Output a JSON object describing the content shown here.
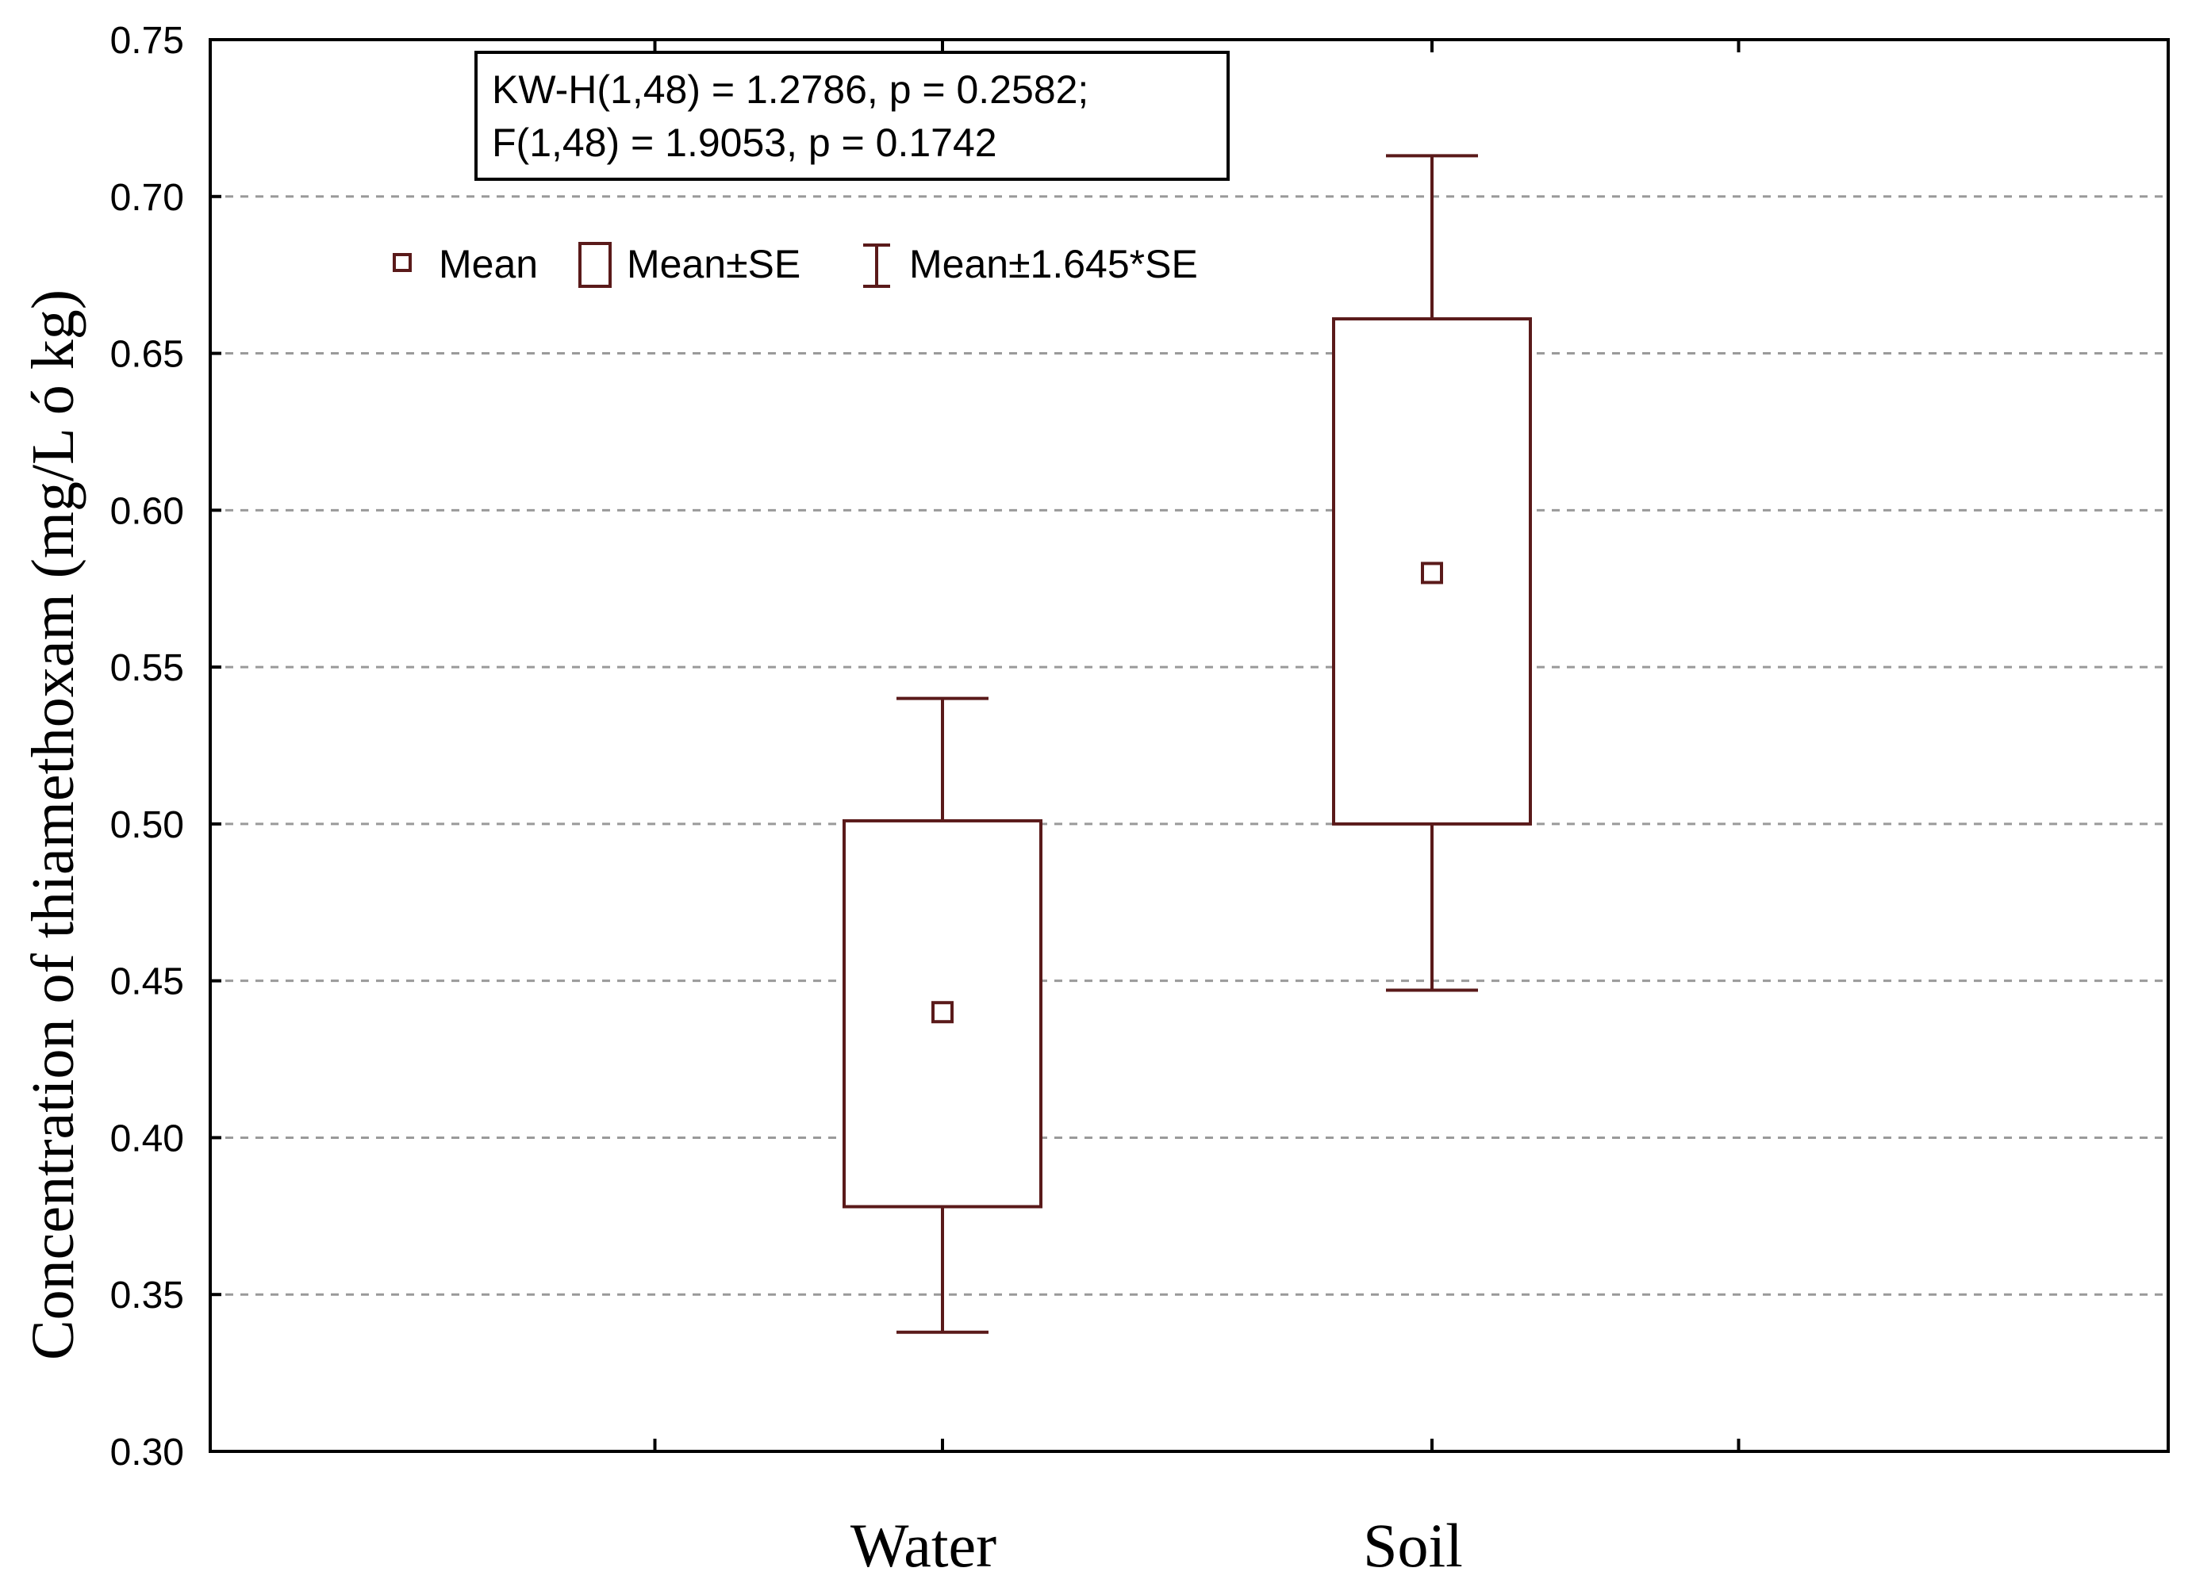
{
  "chart_data": {
    "type": "box",
    "ylabel": "Concentration of thiamethoxam (mg/L ó kg)",
    "ylim": [
      0.3,
      0.75
    ],
    "yticks": [
      "0.30",
      "0.35",
      "0.40",
      "0.45",
      "0.50",
      "0.55",
      "0.60",
      "0.65",
      "0.70",
      "0.75"
    ],
    "grid": true,
    "categories": [
      "Water",
      "Soil"
    ],
    "series": [
      {
        "category": "Water",
        "mean": 0.44,
        "box_low": 0.378,
        "box_high": 0.501,
        "whisker_low": 0.338,
        "whisker_high": 0.54
      },
      {
        "category": "Soil",
        "mean": 0.58,
        "box_low": 0.5,
        "box_high": 0.661,
        "whisker_low": 0.447,
        "whisker_high": 0.713
      }
    ],
    "stats_lines": [
      "KW-H(1,48) = 1.2786, p = 0.2582;",
      "F(1,48) = 1.9053, p = 0.1742"
    ],
    "legend": {
      "placement": "top-left",
      "items": [
        "Mean",
        "Mean±SE",
        "Mean±1.645*SE"
      ]
    },
    "colors": {
      "box": "#5a1a1a",
      "grid": "#9a9a9a",
      "axis": "#000000"
    }
  }
}
